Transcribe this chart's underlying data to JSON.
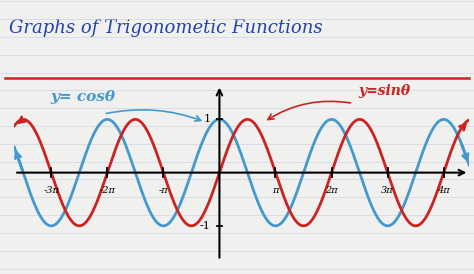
{
  "title": "Graphs of Trigonometic Functions",
  "title_underline_color": "#cc2222",
  "title_color": "#2244aa",
  "background_color": "#f0f0ee",
  "paper_line_color": "#c8cfe0",
  "cos_color": "#4499cc",
  "sin_color": "#cc2222",
  "cos_label": "y= cosθ",
  "sin_label": "y=sinθ",
  "x_ticks_labels": [
    "-3π",
    "-2π",
    "-π",
    "π",
    "2π",
    "3π",
    "4π"
  ],
  "x_ticks_values": [
    -9.42477796,
    -6.28318531,
    -3.14159265,
    3.14159265,
    6.28318531,
    9.42477796,
    12.56637061
  ],
  "xlim": [
    -11.5,
    14.0
  ],
  "ylim": [
    -1.75,
    1.75
  ],
  "figsize": [
    4.74,
    2.74
  ],
  "dpi": 100,
  "line_width": 2.0
}
